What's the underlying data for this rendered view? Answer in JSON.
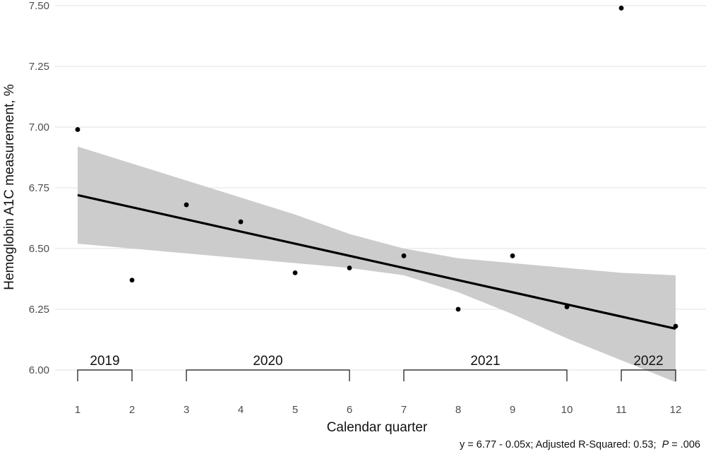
{
  "chart_data": {
    "type": "scatter",
    "xlabel": "Calendar quarter",
    "ylabel": "Hemoglobin A1C measurement, %",
    "x_ticks": [
      "1",
      "2",
      "3",
      "4",
      "5",
      "6",
      "7",
      "8",
      "9",
      "10",
      "11",
      "12"
    ],
    "y_ticks": [
      "6.00",
      "6.25",
      "6.50",
      "6.75",
      "7.00",
      "7.25",
      "7.50"
    ],
    "xlim": [
      0.55,
      12.55
    ],
    "ylim": [
      5.95,
      7.51
    ],
    "points": [
      {
        "x": 1,
        "y": 6.99
      },
      {
        "x": 2,
        "y": 6.37
      },
      {
        "x": 3,
        "y": 6.68
      },
      {
        "x": 4,
        "y": 6.61
      },
      {
        "x": 5,
        "y": 6.4
      },
      {
        "x": 6,
        "y": 6.42
      },
      {
        "x": 7,
        "y": 6.47
      },
      {
        "x": 8,
        "y": 6.25
      },
      {
        "x": 9,
        "y": 6.47
      },
      {
        "x": 10,
        "y": 6.26
      },
      {
        "x": 11,
        "y": 7.49
      },
      {
        "x": 12,
        "y": 6.18
      }
    ],
    "fit_line": {
      "x": [
        1,
        12
      ],
      "y": [
        6.72,
        6.17
      ]
    },
    "confidence_band": {
      "x": [
        1,
        2,
        3,
        4,
        5,
        6,
        7,
        8,
        9,
        10,
        11,
        12
      ],
      "lower": [
        6.52,
        6.5,
        6.48,
        6.46,
        6.44,
        6.42,
        6.39,
        6.32,
        6.23,
        6.13,
        6.04,
        5.95
      ],
      "upper": [
        6.92,
        6.85,
        6.78,
        6.71,
        6.64,
        6.56,
        6.5,
        6.46,
        6.44,
        6.42,
        6.4,
        6.39
      ]
    },
    "year_groups": [
      {
        "label": "2019",
        "start": 1,
        "end": 2
      },
      {
        "label": "2020",
        "start": 3,
        "end": 6
      },
      {
        "label": "2021",
        "start": 7,
        "end": 10
      },
      {
        "label": "2022",
        "start": 11,
        "end": 12
      }
    ],
    "grid": "horizontal",
    "colors": {
      "points": "#000000",
      "fit_line": "#000000",
      "band": "#cccccc",
      "grid": "#e0e0e0"
    },
    "caption": {
      "equation": "y = 6.77 - 0.05x; Adjusted R-Squared: 0.53;",
      "p_symbol": "P",
      "p_value": " = .006"
    }
  }
}
